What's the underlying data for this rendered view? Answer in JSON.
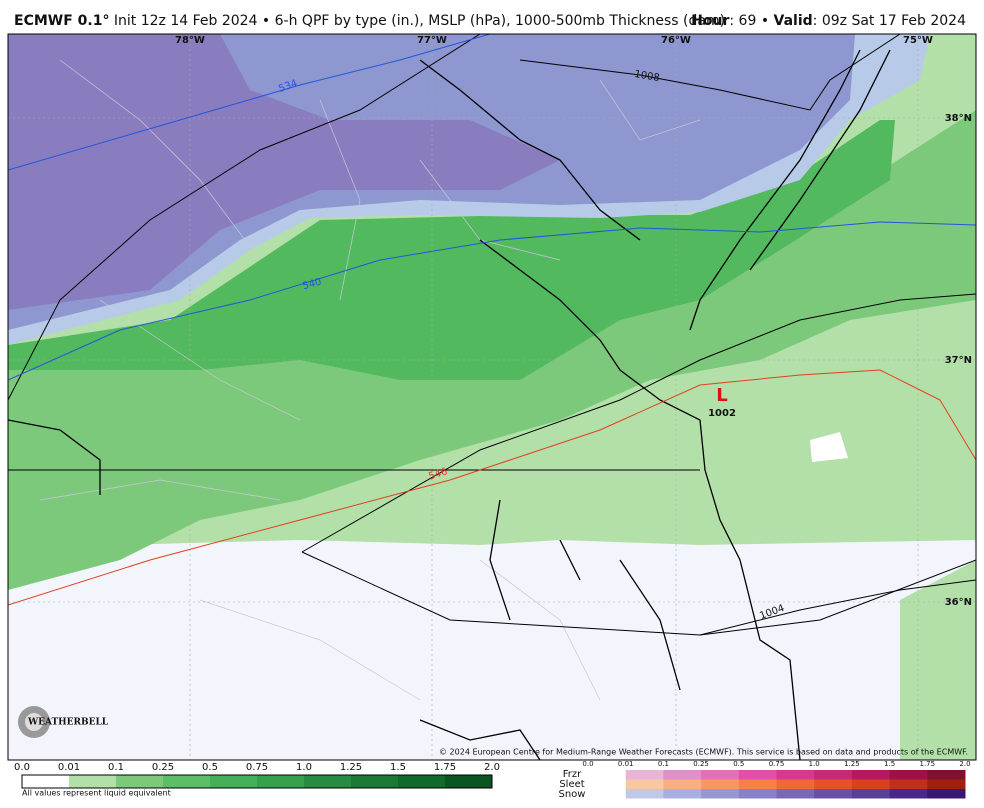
{
  "header": {
    "model": "ECMWF 0.1°",
    "description": "Init 12z 14 Feb 2024 • 6-h QPF by type (in.), MSLP (hPa), 1000-500mb Thickness (dam)",
    "hour_label": "Hour",
    "hour_value": ": 69 • ",
    "valid_label": "Valid",
    "valid_value": ": 09z Sat 17 Feb 2024"
  },
  "map": {
    "longitudes": [
      "78°W",
      "77°W",
      "76°W",
      "75°W"
    ],
    "latitudes": [
      "38°N",
      "37°N",
      "36°N"
    ],
    "thickness_labels": [
      "534",
      "540",
      "546"
    ],
    "pressure_labels": [
      "1008",
      "1004"
    ],
    "low": {
      "symbol": "L",
      "pressure": "1002"
    },
    "copyright": "© 2024 European Centre for Medium-Range Weather Forecasts (ECMWF). This service is based on data and products of the ECMWF.",
    "logo": "WEATHERBELL"
  },
  "legend": {
    "rain_ticks": [
      "0.0",
      "0.01",
      "0.1",
      "0.25",
      "0.5",
      "0.75",
      "1.0",
      "1.25",
      "1.5",
      "1.75",
      "2.0"
    ],
    "note": "All values represent liquid equivalent",
    "types": [
      "Frzr",
      "Sleet",
      "Snow"
    ],
    "mix_ticks": [
      "0.0",
      "0.01",
      "0.1",
      "0.25",
      "0.5",
      "0.75",
      "1.0",
      "1.25",
      "1.5",
      "1.75",
      "2.0"
    ]
  }
}
